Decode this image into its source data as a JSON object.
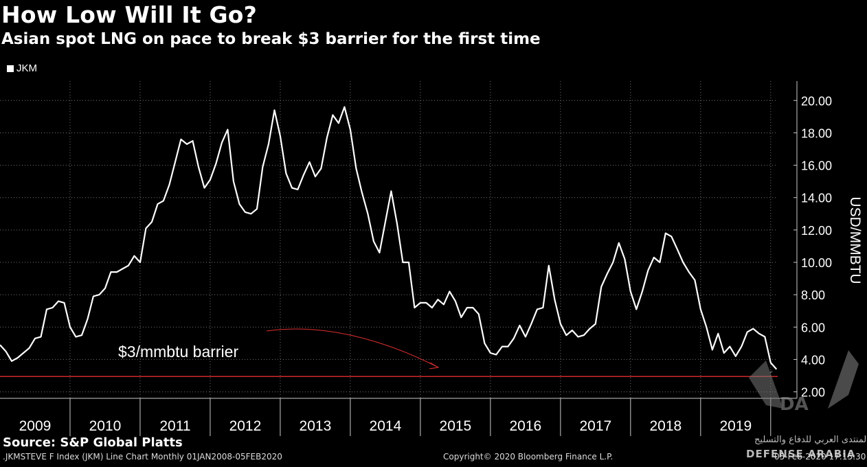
{
  "header": {
    "title": "How Low Will It Go?",
    "subtitle": "Asian spot LNG on pace to break $3 barrier for the first time"
  },
  "legend": {
    "label": "JKM",
    "color": "#ffffff"
  },
  "annotation": {
    "text": "$3/mmbtu barrier",
    "arrow_color": "#e03030"
  },
  "source": "Source: S&P Global Platts",
  "footer": {
    "left": ".JKMSTEVE F Index (JKM) Line Chart  Monthly 01JAN2008-05FEB2020",
    "copyright": "Copyright© 2020 Bloomberg Finance L.P.",
    "timestamp": "05-Feb-2020 17:15:30"
  },
  "watermark": {
    "letters": "DA",
    "line1": "المنتدى العربي للدفاع والتسليح",
    "line2": "DEFENSE ARABIA"
  },
  "chart_data": {
    "type": "line",
    "title": "How Low Will It Go?",
    "ylabel": "USD/MMBTU",
    "ylim": [
      1.6,
      21.2
    ],
    "y_ticks": [
      2,
      4,
      6,
      8,
      10,
      12,
      14,
      16,
      18,
      20
    ],
    "y_tick_labels": [
      "2.00",
      "4.00",
      "6.00",
      "8.00",
      "10.00",
      "12.00",
      "14.00",
      "16.00",
      "18.00",
      "20.00"
    ],
    "x_categories": [
      "2009",
      "2010",
      "2011",
      "2012",
      "2013",
      "2014",
      "2015",
      "2016",
      "2017",
      "2018",
      "2019"
    ],
    "x_start": 2009.0,
    "x_end": 2020.1,
    "reference_line": {
      "value": 2.95,
      "color": "#e03030",
      "label": "$3/mmbtu barrier"
    },
    "series": [
      {
        "name": "JKM",
        "color": "#ffffff",
        "x": [
          2009.0,
          2009.083,
          2009.167,
          2009.25,
          2009.333,
          2009.417,
          2009.5,
          2009.583,
          2009.667,
          2009.75,
          2009.833,
          2009.917,
          2010.0,
          2010.083,
          2010.167,
          2010.25,
          2010.333,
          2010.417,
          2010.5,
          2010.583,
          2010.667,
          2010.75,
          2010.833,
          2010.917,
          2011.0,
          2011.083,
          2011.167,
          2011.25,
          2011.333,
          2011.417,
          2011.5,
          2011.583,
          2011.667,
          2011.75,
          2011.833,
          2011.917,
          2012.0,
          2012.083,
          2012.167,
          2012.25,
          2012.333,
          2012.417,
          2012.5,
          2012.583,
          2012.667,
          2012.75,
          2012.833,
          2012.917,
          2013.0,
          2013.083,
          2013.167,
          2013.25,
          2013.333,
          2013.417,
          2013.5,
          2013.583,
          2013.667,
          2013.75,
          2013.833,
          2013.917,
          2014.0,
          2014.083,
          2014.167,
          2014.25,
          2014.333,
          2014.417,
          2014.5,
          2014.583,
          2014.667,
          2014.75,
          2014.833,
          2014.917,
          2015.0,
          2015.083,
          2015.167,
          2015.25,
          2015.333,
          2015.417,
          2015.5,
          2015.583,
          2015.667,
          2015.75,
          2015.833,
          2015.917,
          2016.0,
          2016.083,
          2016.167,
          2016.25,
          2016.333,
          2016.417,
          2016.5,
          2016.583,
          2016.667,
          2016.75,
          2016.833,
          2016.917,
          2017.0,
          2017.083,
          2017.167,
          2017.25,
          2017.333,
          2017.417,
          2017.5,
          2017.583,
          2017.667,
          2017.75,
          2017.833,
          2017.917,
          2018.0,
          2018.083,
          2018.167,
          2018.25,
          2018.333,
          2018.417,
          2018.5,
          2018.583,
          2018.667,
          2018.75,
          2018.833,
          2018.917,
          2019.0,
          2019.083,
          2019.167,
          2019.25,
          2019.333,
          2019.417,
          2019.5,
          2019.583,
          2019.667,
          2019.75,
          2019.833,
          2019.917,
          2020.0,
          2020.083
        ],
        "values": [
          4.9,
          4.5,
          3.9,
          4.1,
          4.4,
          4.7,
          5.3,
          5.4,
          7.1,
          7.2,
          7.6,
          7.5,
          6.0,
          5.4,
          5.5,
          6.5,
          7.9,
          8.0,
          8.4,
          9.4,
          9.4,
          9.6,
          9.8,
          10.4,
          10.0,
          12.1,
          12.5,
          13.6,
          13.8,
          14.8,
          16.2,
          17.6,
          17.3,
          17.5,
          15.9,
          14.6,
          15.1,
          16.1,
          17.4,
          18.2,
          15.0,
          13.6,
          13.1,
          13.0,
          13.3,
          15.9,
          17.3,
          19.4,
          17.8,
          15.5,
          14.6,
          14.5,
          15.4,
          16.2,
          15.3,
          15.8,
          17.7,
          19.1,
          18.6,
          19.6,
          18.2,
          15.8,
          14.3,
          13.0,
          11.3,
          10.6,
          12.5,
          14.4,
          12.4,
          10.0,
          10.0,
          7.2,
          7.5,
          7.5,
          7.2,
          7.7,
          7.4,
          8.2,
          7.6,
          6.6,
          7.2,
          7.2,
          6.8,
          5.0,
          4.4,
          4.3,
          4.8,
          4.8,
          5.3,
          6.1,
          5.4,
          6.2,
          7.1,
          7.2,
          9.8,
          7.7,
          6.2,
          5.5,
          5.8,
          5.4,
          5.5,
          5.9,
          6.2,
          8.5,
          9.3,
          10.0,
          11.2,
          10.2,
          8.2,
          7.1,
          8.2,
          9.5,
          10.3,
          10.0,
          11.8,
          11.6,
          10.8,
          10.0,
          9.4,
          8.9,
          7.1,
          6.0,
          4.6,
          5.6,
          4.4,
          4.8,
          4.2,
          4.8,
          5.7,
          5.9,
          5.6,
          5.4,
          3.8,
          3.4
        ]
      }
    ]
  }
}
